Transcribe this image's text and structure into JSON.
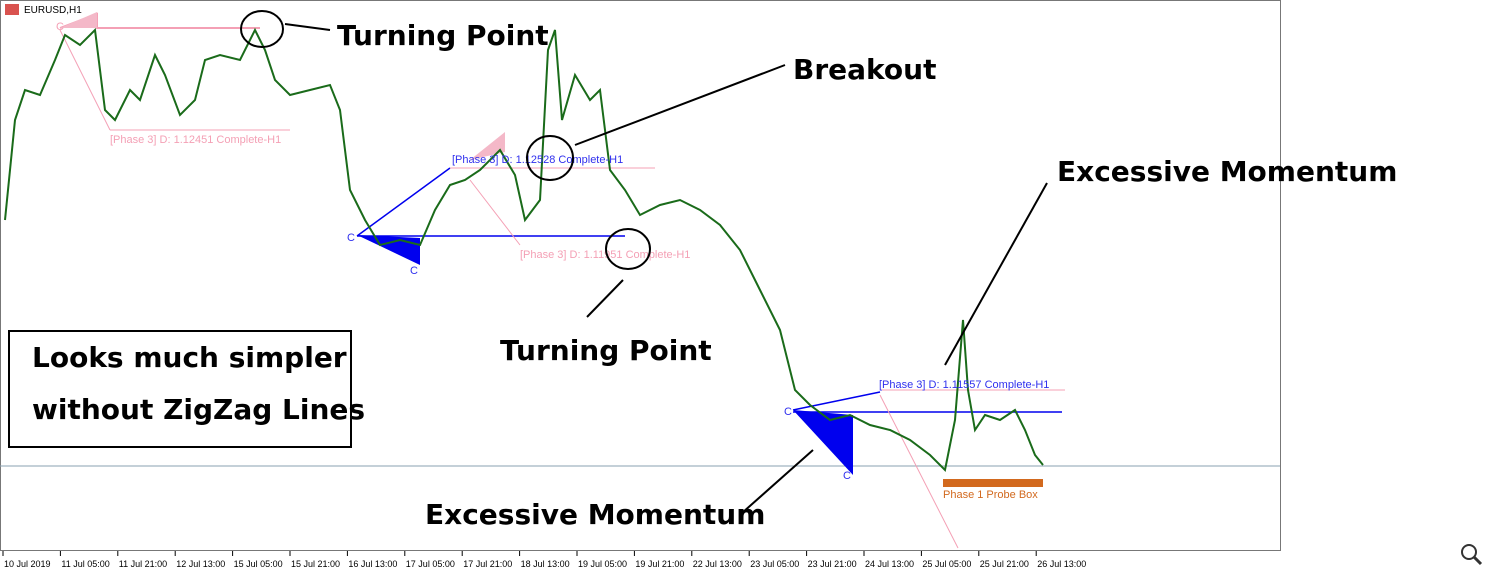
{
  "header": {
    "symbol": "EURUSD,H1"
  },
  "annotations": {
    "turning_point_top": "Turning Point",
    "breakout": "Breakout",
    "momentum_right": "Excessive Momentum",
    "turning_point_mid": "Turning Point",
    "momentum_bottom": "Excessive Momentum",
    "note_line1": "Looks much simpler",
    "note_line2": "without ZigZag Lines"
  },
  "patterns": [
    {
      "label": "[Phase 3] D: 1.12451 Complete-H1"
    },
    {
      "label": "[Phase 3] D: 1.12528 Complete-H1"
    },
    {
      "label": "[Phase 3] D: 1.11951 Complete-H1"
    },
    {
      "label": "[Phase 3] D: 1.11557 Complete-H1"
    },
    {
      "label": "Phase 1 Probe Box"
    }
  ],
  "point_label": "C",
  "time_axis": [
    "10 Jul 2019",
    "11 Jul 05:00",
    "11 Jul 21:00",
    "12 Jul 13:00",
    "15 Jul 05:00",
    "15 Jul 21:00",
    "16 Jul 13:00",
    "17 Jul 05:00",
    "17 Jul 21:00",
    "18 Jul 13:00",
    "19 Jul 05:00",
    "19 Jul 21:00",
    "22 Jul 13:00",
    "23 Jul 05:00",
    "23 Jul 21:00",
    "24 Jul 13:00",
    "25 Jul 05:00",
    "25 Jul 21:00",
    "26 Jul 13:00"
  ]
}
